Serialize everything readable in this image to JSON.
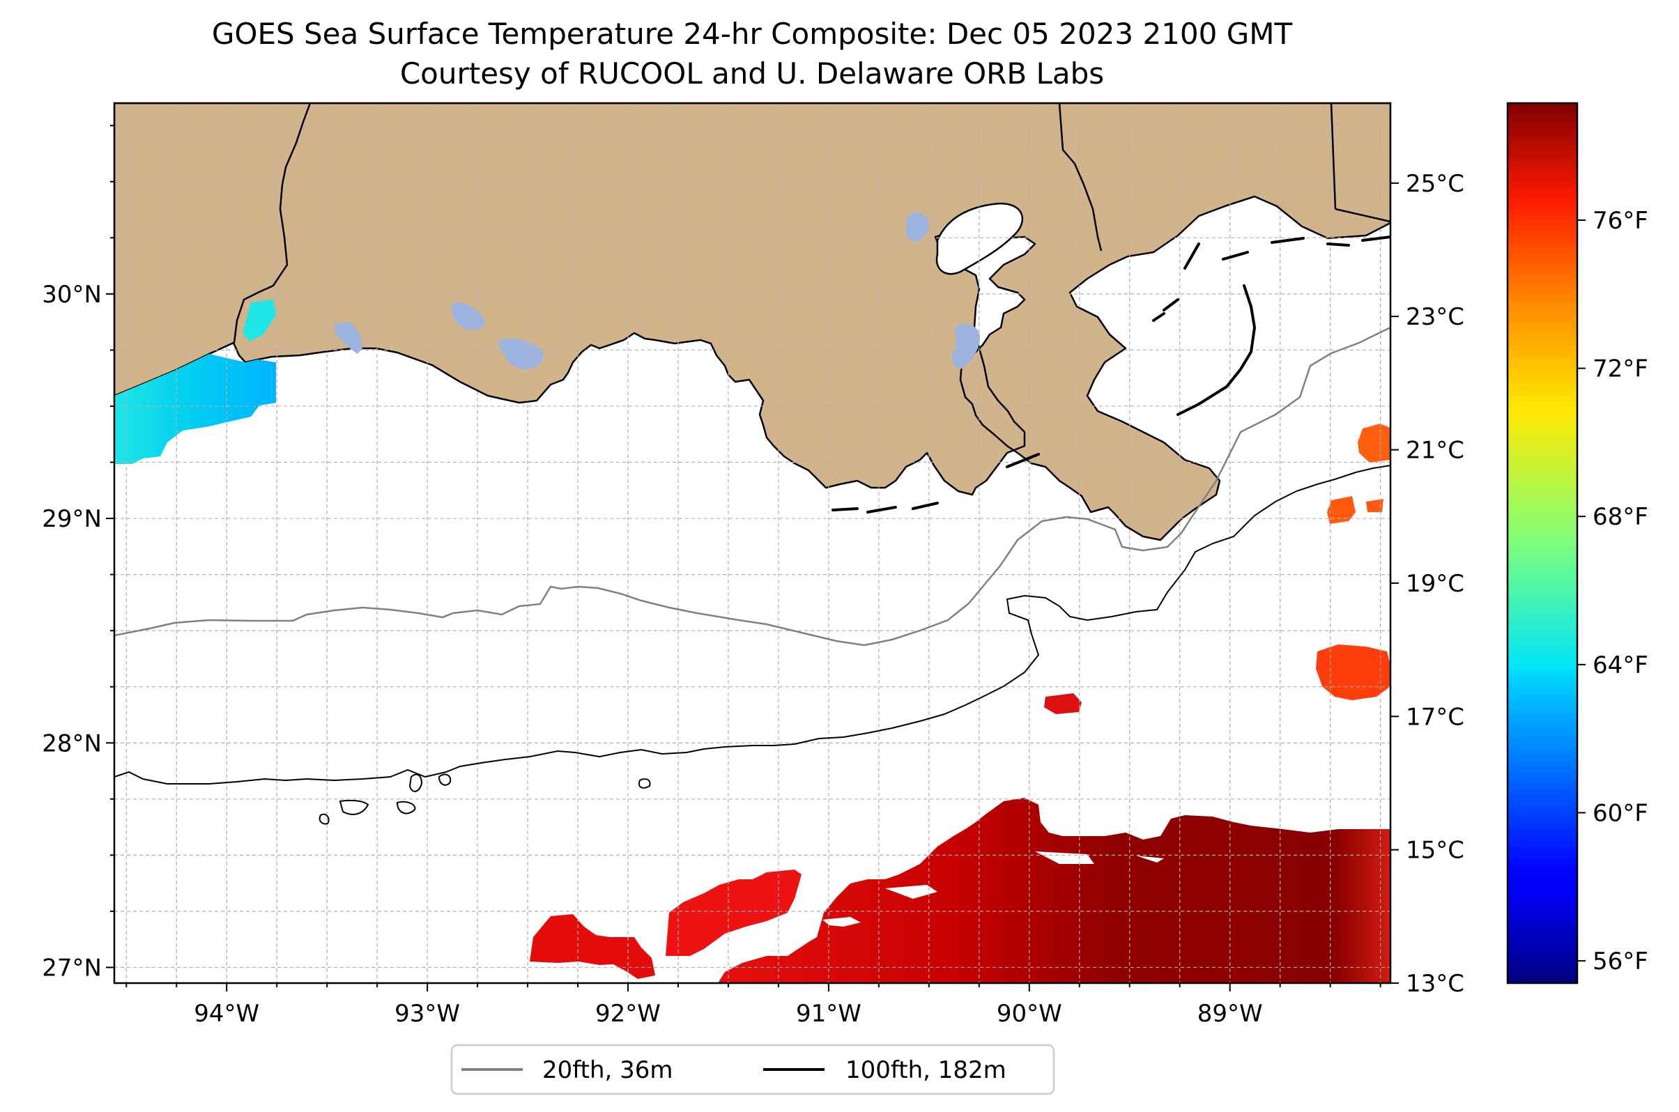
{
  "title": "GOES Sea Surface Temperature 24-hr Composite: Dec 05 2023 2100 GMT",
  "subtitle": "Courtesy of RUCOOL and U. Delaware ORB Labs",
  "map": {
    "extent": {
      "lon_min": -94.56,
      "lon_max": -88.2,
      "lat_min": 26.93,
      "lat_max": 30.85
    },
    "lon_ticks": [
      {
        "value": -94,
        "label": "94°W"
      },
      {
        "value": -93,
        "label": "93°W"
      },
      {
        "value": -92,
        "label": "92°W"
      },
      {
        "value": -91,
        "label": "91°W"
      },
      {
        "value": -90,
        "label": "90°W"
      },
      {
        "value": -89,
        "label": "89°W"
      }
    ],
    "lat_ticks": [
      {
        "value": 27,
        "label": "27°N"
      },
      {
        "value": 28,
        "label": "28°N"
      },
      {
        "value": 29,
        "label": "29°N"
      },
      {
        "value": 30,
        "label": "30°N"
      }
    ],
    "land_color": "#d2b48c",
    "lake_color": "#9db3e0",
    "grid": true
  },
  "colorbar": {
    "colormap": "jet",
    "celsius_range": [
      13,
      26.2
    ],
    "celsius_ticks": [
      {
        "value": 13,
        "label": "13°C"
      },
      {
        "value": 15,
        "label": "15°C"
      },
      {
        "value": 17,
        "label": "17°C"
      },
      {
        "value": 19,
        "label": "19°C"
      },
      {
        "value": 21,
        "label": "21°C"
      },
      {
        "value": 23,
        "label": "23°C"
      },
      {
        "value": 25,
        "label": "25°C"
      }
    ],
    "fahrenheit_ticks": [
      {
        "value": 56,
        "label": "56°F"
      },
      {
        "value": 60,
        "label": "60°F"
      },
      {
        "value": 64,
        "label": "64°F"
      },
      {
        "value": 68,
        "label": "68°F"
      },
      {
        "value": 72,
        "label": "72°F"
      },
      {
        "value": 76,
        "label": "76°F"
      }
    ]
  },
  "legend": [
    {
      "label": "20fth, 36m",
      "color": "#808080"
    },
    {
      "label": "100fth, 182m",
      "color": "#000000"
    }
  ]
}
